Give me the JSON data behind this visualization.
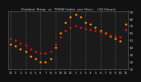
{
  "title": "Outdoor Temp  vs  THSW Index  per Hour    (24 Hours)",
  "background_color": "#111111",
  "plot_bg_color": "#1a1a1a",
  "grid_color": "#555555",
  "hours": [
    0,
    1,
    2,
    3,
    4,
    5,
    6,
    7,
    8,
    9,
    10,
    11,
    12,
    13,
    14,
    15,
    16,
    17,
    18,
    19,
    20,
    21,
    22,
    23
  ],
  "temp_values": [
    52,
    50,
    46,
    43,
    38,
    35,
    32,
    32,
    35,
    44,
    55,
    63,
    68,
    70,
    68,
    66,
    65,
    63,
    61,
    59,
    57,
    56,
    55,
    65
  ],
  "thsw_values": [
    45,
    42,
    38,
    35,
    28,
    24,
    20,
    20,
    24,
    40,
    60,
    75,
    82,
    86,
    82,
    75,
    72,
    68,
    64,
    60,
    56,
    52,
    49,
    72
  ],
  "temp_color": "#dd1111",
  "thsw_color": "#ff8800",
  "thsw_color2": "#ffcc00",
  "ylim_min": 10,
  "ylim_max": 90,
  "ytick_values": [
    10,
    20,
    30,
    40,
    50,
    60,
    70,
    80,
    90
  ],
  "marker_size": 3.5,
  "dashed_grid_hours": [
    0,
    3,
    6,
    9,
    12,
    15,
    18,
    21
  ],
  "text_color": "#cccccc",
  "title_fontsize": 3.2,
  "tick_fontsize": 2.8
}
